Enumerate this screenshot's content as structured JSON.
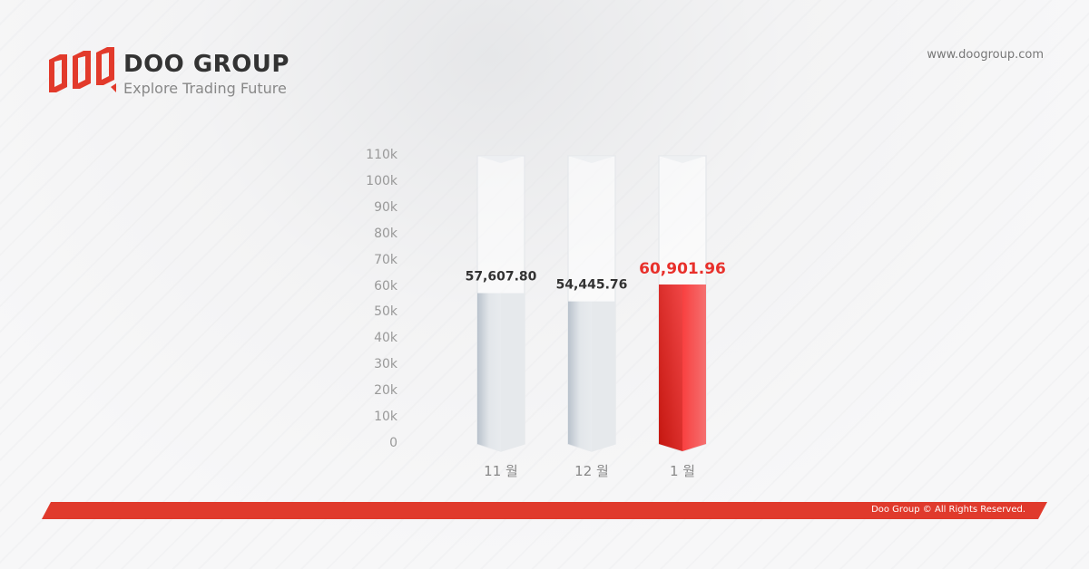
{
  "header": {
    "brand": "DOO GROUP",
    "tagline": "Explore Trading Future",
    "url": "www.doogroup.com",
    "logo_icon": "doo-logo"
  },
  "footer": {
    "copyright": "Doo Group © All Rights Reserved.",
    "color": "#e03a2c"
  },
  "chart_data": {
    "type": "bar",
    "categories": [
      "11 월",
      "12 월",
      "1 월"
    ],
    "values": [
      57607.8,
      54445.76,
      60901.96
    ],
    "labels": [
      "57,607.80",
      "54,445.76",
      "60,901.96"
    ],
    "highlight_index": 2,
    "yticks": [
      "0",
      "10k",
      "20k",
      "30k",
      "40k",
      "50k",
      "60k",
      "70k",
      "80k",
      "90k",
      "100k",
      "110k"
    ],
    "ylim": [
      0,
      110000
    ],
    "grid": false,
    "colors": {
      "normal": "#dfe3e8",
      "highlight": "#e8302b"
    }
  }
}
